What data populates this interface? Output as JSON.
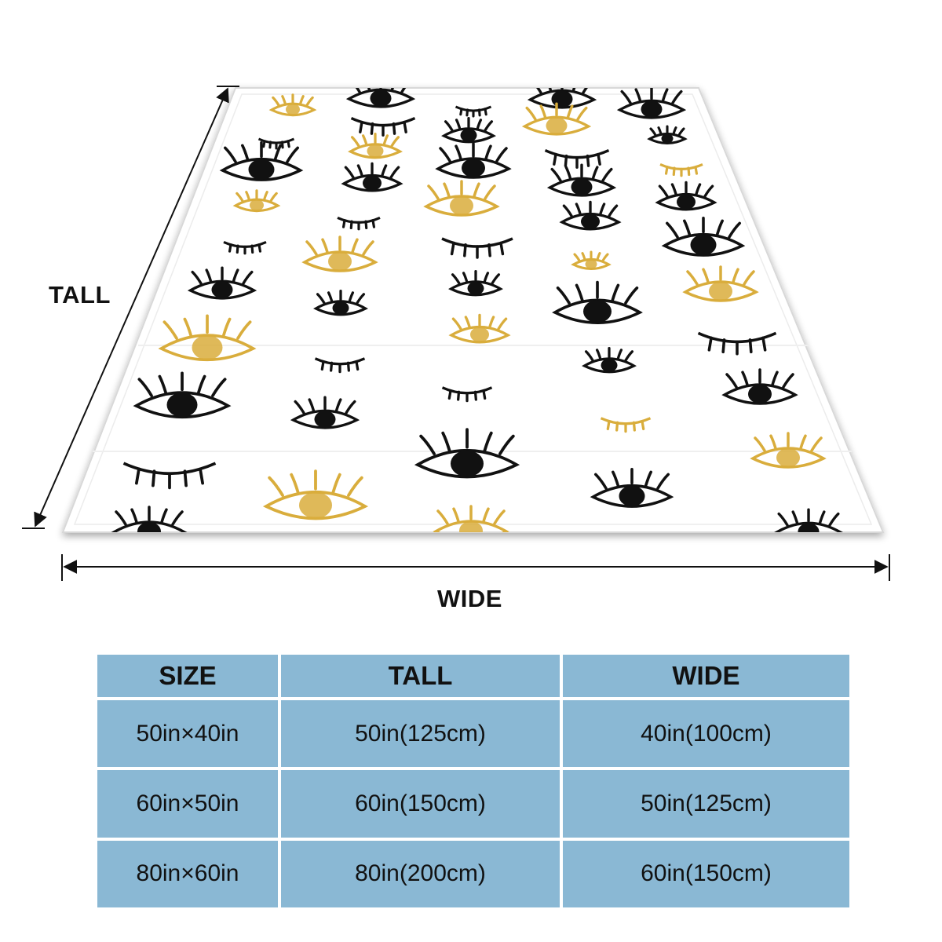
{
  "figure": {
    "tall_label": "TALL",
    "wide_label": "WIDE",
    "pattern": "black-and-gold-eyelash-eyes",
    "colors": {
      "ink": "#111111",
      "gold": "#d9ad3c",
      "fabric": "#ffffff"
    }
  },
  "size_table": {
    "headers": [
      "SIZE",
      "TALL",
      "WIDE"
    ],
    "rows": [
      [
        "50in×40in",
        "50in(125cm)",
        "40in(100cm)"
      ],
      [
        "60in×50in",
        "60in(150cm)",
        "50in(125cm)"
      ],
      [
        "80in×60in",
        "80in(200cm)",
        "60in(150cm)"
      ]
    ],
    "cell_color": "#8ab8d4"
  }
}
